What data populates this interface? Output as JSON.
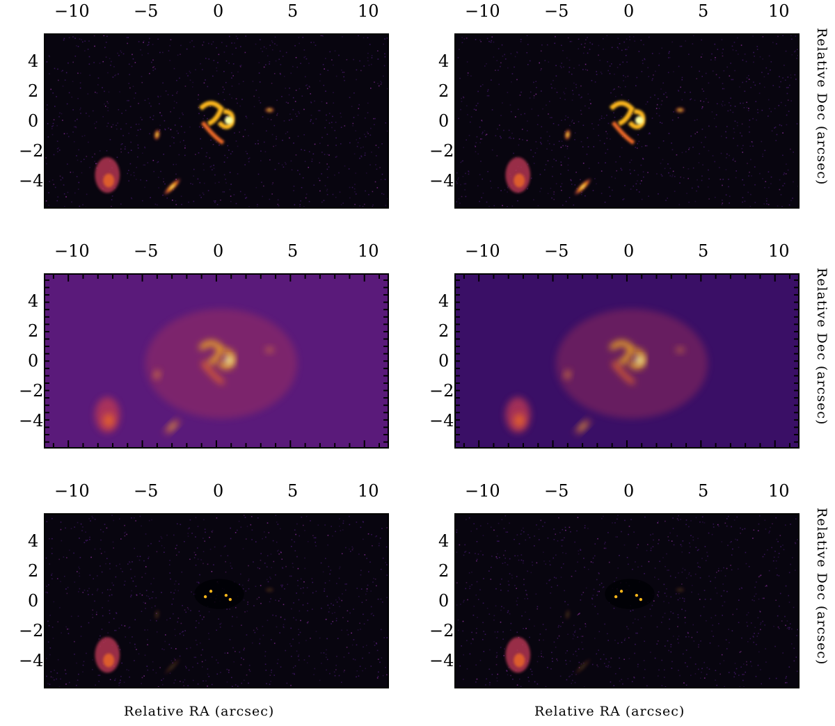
{
  "figure": {
    "x_ticks": [
      "−10",
      "−5",
      "0",
      "5",
      "10"
    ],
    "y_ticks": [
      "4",
      "2",
      "0",
      "−2",
      "−4"
    ],
    "x_axis_label": "Relative RA (arcsec)",
    "y_axis_label": "Relative Dec (arcsec)",
    "colormap": [
      "#000004",
      "#320a5e",
      "#781c6d",
      "#bc3754",
      "#ed6925",
      "#fbb61a",
      "#fcffa4"
    ],
    "panels": [
      {
        "row": 1,
        "col": 1,
        "kind": "observed-image"
      },
      {
        "row": 1,
        "col": 2,
        "kind": "observed-image"
      },
      {
        "row": 2,
        "col": 1,
        "kind": "model-image"
      },
      {
        "row": 2,
        "col": 2,
        "kind": "model-image"
      },
      {
        "row": 3,
        "col": 1,
        "kind": "residual-image"
      },
      {
        "row": 3,
        "col": 2,
        "kind": "residual-image"
      }
    ]
  }
}
